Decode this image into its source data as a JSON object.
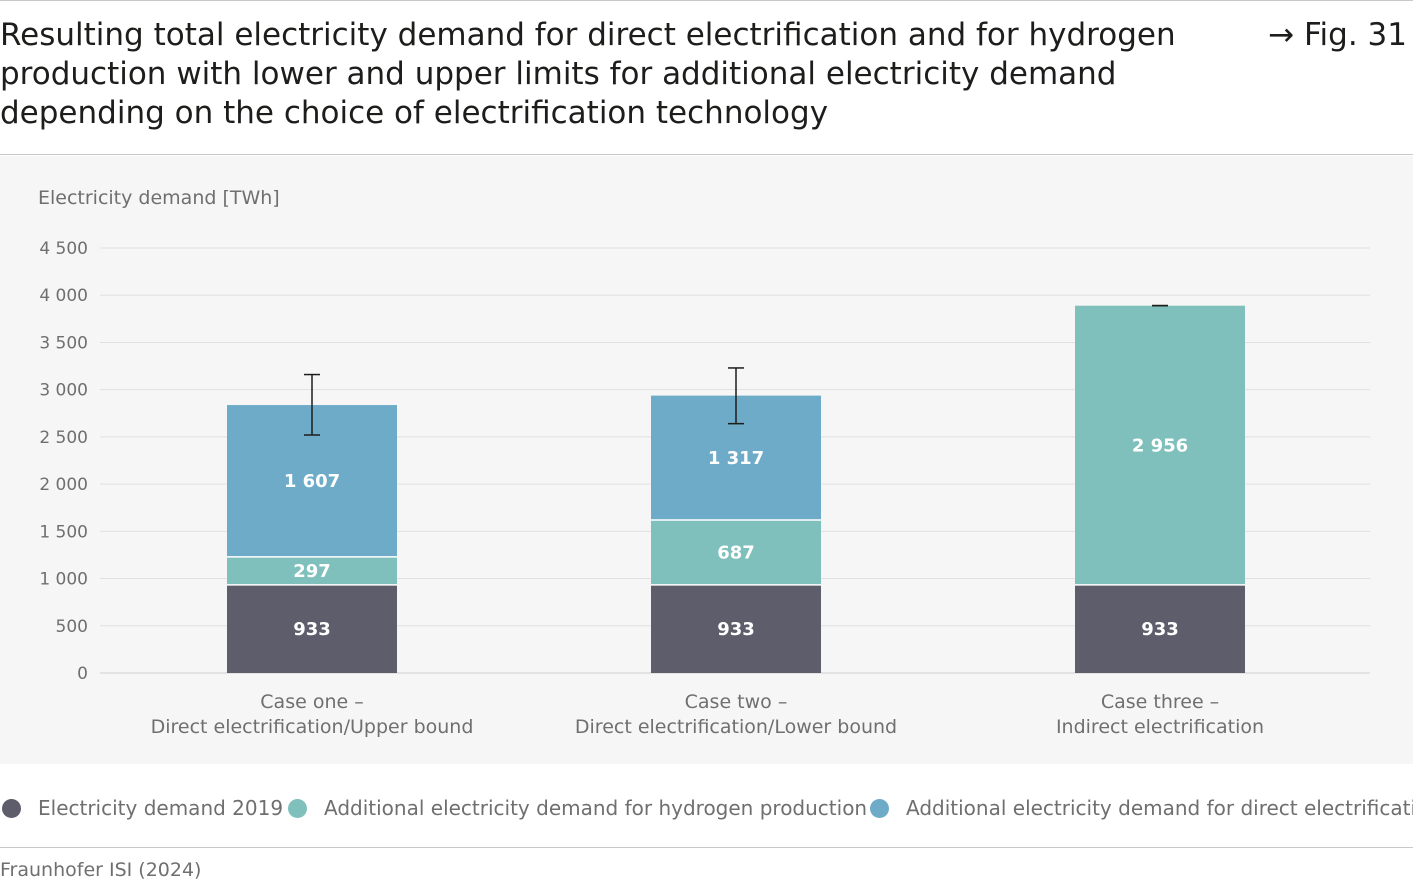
{
  "header": {
    "title": "Resulting total electricity demand for direct electrification and for hydrogen production with lower and upper limits for additional electricity demand depending on the choice of electrification technology",
    "figure_ref": "→ Fig. 31"
  },
  "source": "Fraunhofer ISI (2024)",
  "colors": {
    "demand_2019": "#5d5d6b",
    "hydrogen": "#7fc0bc",
    "direct": "#6eabc8",
    "grid": "#e0e0e0",
    "axis_text": "#6f6f6f"
  },
  "chart_data": {
    "type": "bar",
    "stacked": true,
    "ylabel": "Electricity demand [TWh]",
    "ylim": [
      0,
      4500
    ],
    "yticks": [
      0,
      500,
      1000,
      1500,
      2000,
      2500,
      3000,
      3500,
      4000,
      4500
    ],
    "ytick_labels": [
      "0",
      "500",
      "1 000",
      "1 500",
      "2 000",
      "2 500",
      "3 000",
      "3 500",
      "4 000",
      "4 500"
    ],
    "grid": true,
    "categories": [
      [
        "Case one –",
        "Direct electrification/Upper bound"
      ],
      [
        "Case two –",
        "Direct electrification/Lower bound"
      ],
      [
        "Case three –",
        "Indirect electrification"
      ]
    ],
    "series": [
      {
        "name": "Electricity demand 2019",
        "values": [
          933,
          933,
          933
        ],
        "labels": [
          "933",
          "933",
          "933"
        ],
        "color": "#5d5d6b"
      },
      {
        "name": "Additional electricity demand for hydrogen production",
        "values": [
          297,
          687,
          2956
        ],
        "labels": [
          "297",
          "687",
          "2 956"
        ],
        "color": "#7fc0bc"
      },
      {
        "name": "Additional electricity demand for direct electrification",
        "values": [
          1607,
          1317,
          0
        ],
        "labels": [
          "1 607",
          "1 317",
          ""
        ],
        "color": "#6eabc8"
      }
    ],
    "error_bars": [
      {
        "low": 2520,
        "high": 3160
      },
      {
        "low": 2640,
        "high": 3230
      },
      {
        "low": 3890,
        "high": 3890
      }
    ],
    "legend_position": "bottom"
  }
}
